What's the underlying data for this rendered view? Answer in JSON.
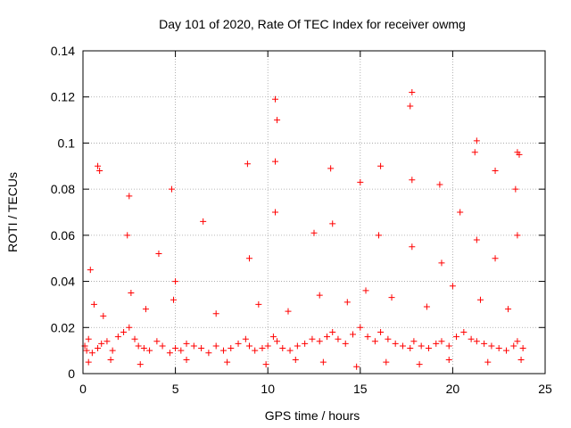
{
  "chart_data": {
    "type": "scatter",
    "title": "Day 101 of 2020, Rate Of TEC Index for receiver owmg",
    "xlabel": "GPS time / hours",
    "ylabel": "ROTI / TECUs",
    "xlim": [
      0,
      25
    ],
    "ylim": [
      0,
      0.14
    ],
    "grid": true,
    "x_ticks": [
      0,
      5,
      10,
      15,
      20,
      25
    ],
    "y_ticks": [
      0,
      0.02,
      0.04,
      0.06,
      0.08,
      0.1,
      0.12,
      0.14
    ],
    "x_tick_labels": [
      "0",
      "5",
      "10",
      "15",
      "20",
      "25"
    ],
    "y_tick_labels": [
      "0",
      "0.02",
      "0.04",
      "0.06",
      "0.08",
      "0.1",
      "0.12",
      "0.14"
    ],
    "series": [
      {
        "name": "ROTI",
        "color": "#ff0000",
        "marker": "plus",
        "x": [
          0.1,
          0.2,
          0.3,
          0.5,
          0.8,
          1.0,
          1.3,
          1.6,
          1.9,
          2.2,
          2.5,
          2.8,
          3.0,
          3.3,
          3.6,
          4.0,
          4.3,
          4.7,
          5.0,
          5.3,
          5.6,
          6.0,
          6.4,
          6.8,
          7.2,
          7.6,
          8.0,
          8.4,
          8.8,
          9.0,
          9.3,
          9.7,
          10.0,
          10.3,
          10.5,
          10.8,
          11.2,
          11.6,
          12.0,
          12.4,
          12.8,
          13.2,
          13.5,
          13.8,
          14.2,
          14.6,
          15.0,
          15.4,
          15.8,
          16.1,
          16.5,
          16.9,
          17.3,
          17.7,
          17.9,
          18.3,
          18.7,
          19.1,
          19.4,
          19.8,
          20.2,
          20.6,
          21.0,
          21.3,
          21.7,
          22.1,
          22.5,
          22.9,
          23.3,
          23.5,
          23.8,
          0.4,
          2.4,
          4.1,
          5.0,
          9.0,
          10.4,
          13.5,
          16.0,
          17.8,
          19.4,
          21.3,
          22.3,
          23.5,
          10.4,
          10.5,
          17.8,
          17.7,
          21.3,
          23.5,
          0.8,
          0.9,
          2.5,
          4.8,
          6.5,
          8.9,
          10.4,
          12.5,
          13.4,
          15.0,
          16.1,
          17.8,
          19.3,
          20.4,
          21.2,
          22.3,
          23.4,
          23.6,
          0.6,
          1.1,
          2.6,
          3.4,
          4.9,
          7.2,
          9.5,
          11.1,
          12.8,
          14.3,
          15.3,
          16.7,
          18.6,
          20.0,
          21.5,
          23.0,
          0.3,
          1.5,
          3.1,
          5.6,
          7.8,
          9.9,
          11.5,
          13.0,
          14.8,
          16.4,
          18.2,
          19.8,
          21.9,
          23.7
        ],
        "y": [
          0.012,
          0.01,
          0.015,
          0.009,
          0.011,
          0.013,
          0.014,
          0.01,
          0.016,
          0.018,
          0.02,
          0.015,
          0.012,
          0.011,
          0.01,
          0.014,
          0.012,
          0.009,
          0.011,
          0.01,
          0.013,
          0.012,
          0.011,
          0.009,
          0.012,
          0.01,
          0.011,
          0.013,
          0.015,
          0.012,
          0.01,
          0.011,
          0.012,
          0.016,
          0.014,
          0.011,
          0.01,
          0.012,
          0.013,
          0.015,
          0.014,
          0.016,
          0.018,
          0.015,
          0.013,
          0.017,
          0.02,
          0.016,
          0.014,
          0.018,
          0.015,
          0.013,
          0.012,
          0.011,
          0.014,
          0.012,
          0.011,
          0.013,
          0.014,
          0.012,
          0.016,
          0.018,
          0.015,
          0.014,
          0.013,
          0.012,
          0.011,
          0.01,
          0.012,
          0.014,
          0.011,
          0.045,
          0.06,
          0.052,
          0.04,
          0.05,
          0.07,
          0.065,
          0.06,
          0.055,
          0.048,
          0.058,
          0.05,
          0.06,
          0.119,
          0.11,
          0.122,
          0.116,
          0.101,
          0.096,
          0.09,
          0.088,
          0.077,
          0.08,
          0.066,
          0.091,
          0.092,
          0.061,
          0.089,
          0.083,
          0.09,
          0.084,
          0.082,
          0.07,
          0.096,
          0.088,
          0.08,
          0.095,
          0.03,
          0.025,
          0.035,
          0.028,
          0.032,
          0.026,
          0.03,
          0.027,
          0.034,
          0.031,
          0.036,
          0.033,
          0.029,
          0.038,
          0.032,
          0.028,
          0.005,
          0.006,
          0.004,
          0.006,
          0.005,
          0.004,
          0.006,
          0.005,
          0.003,
          0.005,
          0.004,
          0.006,
          0.005,
          0.006
        ]
      }
    ]
  }
}
